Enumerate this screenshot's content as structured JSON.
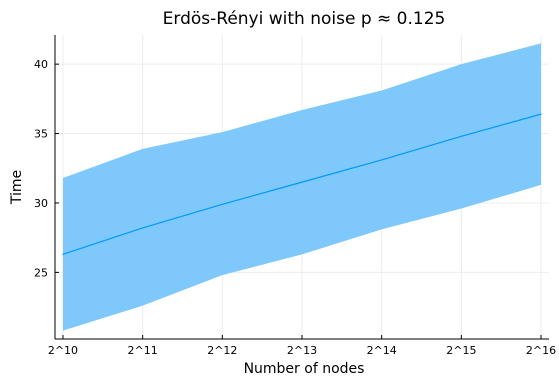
{
  "chart_data": {
    "type": "area",
    "title": "Erdös-Rényi with noise p ≈ 0.125",
    "xlabel": "Number of nodes",
    "ylabel": "Time",
    "x": [
      10,
      11,
      12,
      13,
      14,
      15,
      16
    ],
    "x_tick_labels": [
      "2^10",
      "2^11",
      "2^12",
      "2^13",
      "2^14",
      "2^15",
      "2^16"
    ],
    "y_ticks": [
      25,
      30,
      35,
      40
    ],
    "xlim": [
      9.9,
      16.1
    ],
    "ylim": [
      20.2,
      42.1
    ],
    "grid": true,
    "legend": "none",
    "series": [
      {
        "mean": [
          26.3,
          28.2,
          29.9,
          31.5,
          33.1,
          34.8,
          36.4
        ],
        "lower": [
          20.8,
          22.6,
          24.8,
          26.3,
          28.1,
          29.6,
          31.3
        ],
        "upper": [
          31.8,
          33.9,
          35.1,
          36.7,
          38.1,
          40.0,
          41.5
        ]
      }
    ],
    "colors": {
      "line": "#009af9",
      "band": "#7ec8fb",
      "grid": "#ececec",
      "axis": "#000000"
    }
  }
}
